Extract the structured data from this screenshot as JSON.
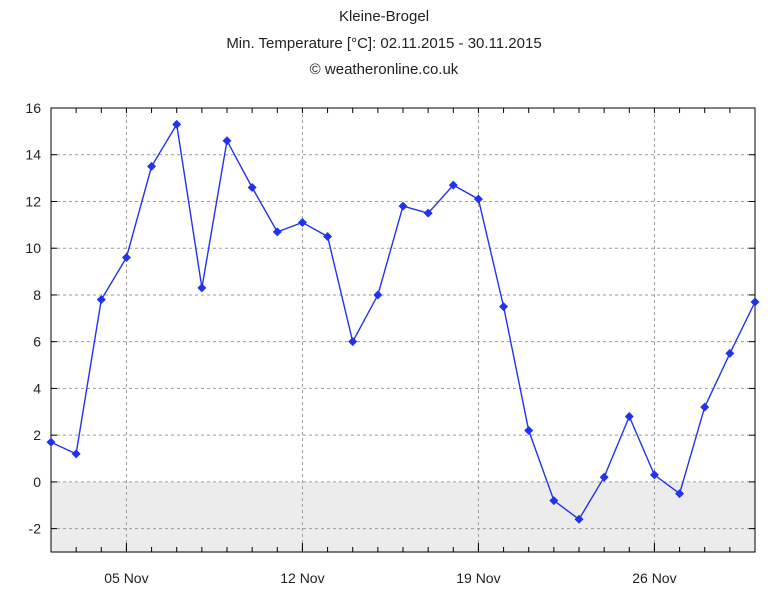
{
  "chart_data": {
    "type": "line",
    "title": "Kleine-Brogel",
    "subtitle": "Min. Temperature [°C]: 02.11.2015 - 30.11.2015",
    "credit": "© weatheronline.co.uk",
    "xlabel": "",
    "ylabel": "",
    "x_start_day": 2,
    "x_end_day": 30,
    "x_ticks": [
      {
        "day": 5,
        "label": "05 Nov"
      },
      {
        "day": 12,
        "label": "12 Nov"
      },
      {
        "day": 19,
        "label": "19 Nov"
      },
      {
        "day": 26,
        "label": "26 Nov"
      }
    ],
    "ylim": [
      -3,
      16
    ],
    "y_ticks": [
      -2,
      0,
      2,
      4,
      6,
      8,
      10,
      12,
      14,
      16
    ],
    "grid": true,
    "negative_band_color": "#ececec",
    "series": [
      {
        "color": "#2233ee",
        "marker": "diamond",
        "values": [
          1.7,
          1.2,
          7.8,
          9.6,
          13.5,
          15.3,
          8.3,
          14.6,
          12.6,
          10.7,
          11.1,
          10.5,
          6.0,
          8.0,
          11.8,
          11.5,
          12.7,
          12.1,
          7.5,
          2.2,
          -0.8,
          -1.6,
          0.2,
          2.8,
          0.3,
          -0.5,
          3.2,
          5.5,
          7.7
        ]
      }
    ]
  }
}
